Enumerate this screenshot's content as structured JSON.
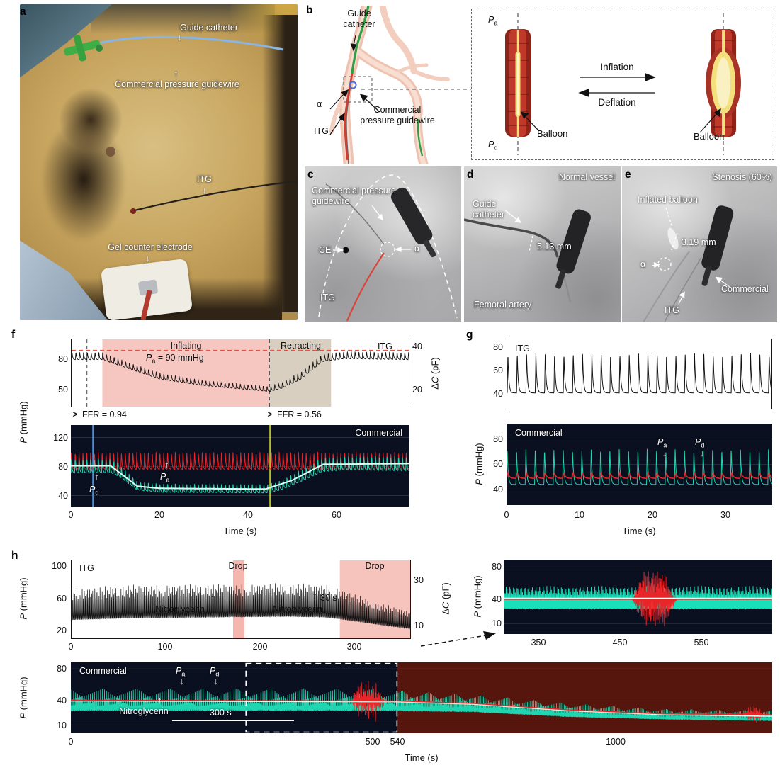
{
  "sym": {
    "P": "P",
    "a": "a",
    "d": "d",
    "alpha": "α",
    "delta": "Δ",
    "C": "C"
  },
  "labels": {
    "mmhg": " (mmHg)",
    "pf": " (pF)",
    "time": "Time (s)"
  },
  "icons": {
    "arrow_down": "↓",
    "arrow_up": "↑",
    "ffr_marker": ">"
  },
  "panels": {
    "a": {
      "label": "a",
      "guide_catheter": "Guide catheter",
      "commercial_guidewire": "Commercial pressure guidewire",
      "itg": "ITG",
      "gel_counter_electrode": "Gel counter electrode"
    },
    "b": {
      "label": "b",
      "guide_catheter": "Guide catheter",
      "commercial_guidewire": "Commercial pressure guidewire",
      "itg": "ITG",
      "inflation": "Inflation",
      "deflation": "Deflation",
      "balloon_left": "Balloon",
      "balloon_right": "Balloon"
    },
    "c": {
      "label": "c",
      "commercial_guidewire": "Commercial pressure guidewire",
      "ce": "CE",
      "itg": "ITG"
    },
    "d": {
      "label": "d",
      "title": "Normal vessel",
      "guide_catheter": "Guide catheter",
      "measurement": "5.13 mm",
      "femoral_artery": "Femoral artery"
    },
    "e": {
      "label": "e",
      "title": "Stenosis (60%)",
      "inflated_balloon": "Inflated balloon",
      "measurement": "3.19 mm",
      "commercial": "Commercial",
      "itg": "ITG"
    },
    "f": {
      "label": "f",
      "pa_value": " = 90 mmHg",
      "ffr1": "FFR = 0.94",
      "ffr2": "FFR = 0.56"
    },
    "g": {
      "label": "g"
    },
    "h": {
      "label": "h",
      "nitroglycerin1": "Nitroglycerin",
      "nitroglycerin2": "Nitroglycerin",
      "nitroglycerin3": "Nitroglycerin",
      "scale30": "30 s",
      "scale300": "300 s"
    }
  },
  "chart_data": [
    {
      "id": "f-itg",
      "type": "line",
      "title": "ITG",
      "n": 1700,
      "xlabel": "Time (s)",
      "ylabel": "P (mmHg)",
      "ylabel_right": "ΔC (pF)",
      "xlim": [
        0,
        77
      ],
      "ylim": [
        32,
        101
      ],
      "yticks": [
        80,
        50
      ],
      "yticks_right": [
        40,
        20
      ],
      "regions": [
        {
          "x0": 7,
          "x1": 45,
          "color": "#f6c6c0",
          "name": "Inflating"
        },
        {
          "x0": 45,
          "x1": 59,
          "color": "#d8cfc0",
          "name": "Retracting"
        }
      ],
      "hlines": [
        {
          "y": 90,
          "color": "#e0554a",
          "dash": true,
          "label": "Pa = 90 mmHg"
        }
      ],
      "vlines": [
        {
          "x": 3.5,
          "color": "#444",
          "dash": true
        },
        {
          "x": 45,
          "color": "#444",
          "dash": true
        }
      ],
      "series": [
        {
          "name": "ITG",
          "style": "pulse",
          "color": "#111111",
          "width": 0.9,
          "freq": 1.15,
          "points": [
            [
              0,
              84,
              7
            ],
            [
              7,
              84,
              7
            ],
            [
              12,
              76,
              6
            ],
            [
              20,
              64,
              6
            ],
            [
              30,
              57,
              5
            ],
            [
              40,
              53,
              5
            ],
            [
              45,
              51,
              5
            ],
            [
              48,
              55,
              6
            ],
            [
              52,
              64,
              7
            ],
            [
              57,
              82,
              7
            ],
            [
              62,
              85,
              7
            ],
            [
              77,
              84,
              7
            ]
          ]
        }
      ],
      "ffr_annotations": [
        "FFR = 0.94",
        "FFR = 0.56"
      ]
    },
    {
      "id": "f-commercial",
      "type": "line",
      "title": "Commercial",
      "n": 1900,
      "xlabel": "Time (s)",
      "ylabel": "P (mmHg)",
      "bg": "#0b1020",
      "grid": [
        40,
        80,
        120
      ],
      "xlim": [
        0,
        76.5
      ],
      "ylim": [
        24,
        137
      ],
      "yticks": [
        120,
        80,
        40
      ],
      "xticks": [
        0,
        20,
        40,
        60
      ],
      "vlines": [
        {
          "x": 5,
          "color": "#4b8fd9",
          "width": 2
        },
        {
          "x": 45,
          "color": "#b8c21c",
          "width": 2
        }
      ],
      "series": [
        {
          "name": "Pa",
          "style": "pulse",
          "color": "#e8262a",
          "width": 1,
          "freq": 1.15,
          "points": [
            [
              0,
              87,
              22
            ],
            [
              76.5,
              87,
              22
            ]
          ]
        },
        {
          "name": "Pd",
          "style": "pulse",
          "color": "#1fd6b1",
          "width": 1,
          "freq": 1.15,
          "points": [
            [
              0,
              80,
              18
            ],
            [
              9,
              80,
              18
            ],
            [
              11,
              74,
              16
            ],
            [
              15,
              53,
              11
            ],
            [
              20,
              50,
              11
            ],
            [
              44,
              49,
              11
            ],
            [
              47,
              53,
              12
            ],
            [
              50,
              61,
              14
            ],
            [
              57,
              82,
              18
            ],
            [
              62,
              84,
              18
            ],
            [
              76.5,
              83,
              18
            ]
          ]
        },
        {
          "name": "Pd mean",
          "style": "mean",
          "color": "#ddfff2",
          "width": 2,
          "points": [
            [
              0,
              81,
              0
            ],
            [
              9,
              81,
              0
            ],
            [
              15,
              53,
              0
            ],
            [
              20,
              50,
              0
            ],
            [
              44,
              49,
              0
            ],
            [
              50,
              61,
              0
            ],
            [
              57,
              83,
              0
            ],
            [
              76.5,
              84,
              0
            ]
          ]
        }
      ]
    },
    {
      "id": "g-itg",
      "type": "line",
      "title": "ITG",
      "n": 1400,
      "ylabel": "P (mmHg)",
      "xlim": [
        0,
        36.5
      ],
      "ylim": [
        27,
        87
      ],
      "yticks": [
        80,
        60,
        40
      ],
      "series": [
        {
          "name": "ITG",
          "style": "spike",
          "color": "#111111",
          "width": 1,
          "freq": 0.78,
          "points": [
            [
              0,
              45,
              34
            ],
            [
              36.5,
              45,
              34
            ]
          ]
        }
      ]
    },
    {
      "id": "g-commercial",
      "type": "line",
      "title": "Commercial",
      "n": 1500,
      "xlabel": "Time (s)",
      "ylabel": "P (mmHg)",
      "bg": "#0b1020",
      "grid": [
        40,
        60,
        80
      ],
      "xlim": [
        0,
        36.5
      ],
      "ylim": [
        28,
        92
      ],
      "yticks": [
        80,
        60,
        40
      ],
      "xticks": [
        0,
        10,
        20,
        30
      ],
      "series": [
        {
          "name": "Pd",
          "style": "spike",
          "color": "#1fd6b1",
          "width": 1,
          "freq": 0.78,
          "points": [
            [
              0,
              47,
              28
            ],
            [
              36.5,
              47,
              28
            ]
          ]
        },
        {
          "name": "Pa",
          "style": "pulse",
          "color": "#e8262a",
          "width": 1.5,
          "freq": 0.78,
          "points": [
            [
              0,
              51,
              4
            ],
            [
              36.5,
              51,
              4
            ]
          ]
        }
      ]
    },
    {
      "id": "h-itg",
      "type": "line",
      "title": "ITG",
      "n": 2400,
      "xlabel": "Time (s)",
      "ylabel": "P (mmHg)",
      "ylabel_right": "ΔC (pF)",
      "xlim": [
        0,
        360
      ],
      "ylim": [
        10,
        108
      ],
      "yticks": [
        100,
        60,
        20
      ],
      "yticks_right": [
        30,
        10
      ],
      "xticks": [
        0,
        100,
        200,
        300
      ],
      "regions": [
        {
          "x0": 171,
          "x1": 183,
          "color": "#f5b6b0",
          "name": "Drop"
        },
        {
          "x0": 284,
          "x1": 360,
          "color": "#f6c3bd",
          "name": "Drop"
        }
      ],
      "series": [
        {
          "name": "ITG",
          "style": "pulse",
          "color": "#111111",
          "width": 0.7,
          "freq": 0.9,
          "points": [
            [
              0,
              52,
              36
            ],
            [
              60,
              55,
              38
            ],
            [
              140,
              56,
              38
            ],
            [
              230,
              57,
              38
            ],
            [
              270,
              56,
              38
            ],
            [
              290,
              51,
              34
            ],
            [
              320,
              42,
              26
            ],
            [
              360,
              33,
              20
            ]
          ]
        }
      ],
      "annotations": [
        "Nitroglycerin",
        "Nitroglycerin",
        "30 s"
      ]
    },
    {
      "id": "h-inset",
      "type": "line",
      "title": "",
      "n": 2000,
      "ylabel": "P (mmHg)",
      "bg": "#0b1020",
      "grid": [
        10,
        40,
        80
      ],
      "xlim": [
        308,
        637
      ],
      "ylim": [
        -3,
        89
      ],
      "yticks": [
        80,
        40,
        10
      ],
      "xticks": [
        350,
        450,
        550
      ],
      "series": [
        {
          "name": "Pd",
          "style": "pulse",
          "color": "#19e0b8",
          "width": 1,
          "freq": 0.9,
          "points": [
            [
              308,
              41,
              26
            ],
            [
              637,
              41,
              26
            ]
          ]
        },
        {
          "name": "Pa burst",
          "style": "burst",
          "color": "#e8262a",
          "width": 1,
          "freq": 1.7,
          "points": [
            [
              308,
              40,
              0
            ],
            [
              465,
              40,
              0
            ],
            [
              472,
              40,
              18
            ],
            [
              480,
              42,
              34
            ],
            [
              505,
              40,
              34
            ],
            [
              512,
              38,
              16
            ],
            [
              520,
              40,
              0
            ],
            [
              637,
              40,
              0
            ]
          ]
        },
        {
          "name": "Pd mean",
          "style": "mean",
          "color": "#e7fff4",
          "width": 2,
          "points": [
            [
              308,
              41,
              0
            ],
            [
              637,
              41,
              0
            ]
          ]
        },
        {
          "name": "Pa",
          "style": "mean",
          "color": "#e8262a",
          "width": 1.4,
          "points": [
            [
              308,
              40,
              0
            ],
            [
              637,
              40,
              0
            ]
          ]
        }
      ]
    },
    {
      "id": "h-commercial",
      "type": "line",
      "title": "Commercial",
      "n": 3200,
      "xlabel": "Time (s)",
      "ylabel": "P (mmHg)",
      "grid": [
        10,
        40,
        80
      ],
      "xlim": [
        0,
        1330
      ],
      "ylim": [
        0,
        88
      ],
      "yticks": [
        80,
        40,
        10
      ],
      "xticks": [
        0,
        500,
        540,
        1000
      ],
      "segments": [
        {
          "t0": 0,
          "t1": 540,
          "f0": 0,
          "f1": 0.465
        },
        {
          "t0": 540,
          "t1": 1330,
          "f0": 0.465,
          "f1": 1
        }
      ],
      "bands": [
        {
          "x0": 0,
          "x1": 540,
          "color": "#0b1020"
        },
        {
          "x0": 540,
          "x1": 1330,
          "color": "#56150d"
        }
      ],
      "boxes": [
        {
          "x0": 290,
          "x1": 540,
          "color": "#ffffff"
        }
      ],
      "series": [
        {
          "name": "Pd",
          "style": "pulse",
          "color": "#1fd6b1",
          "width": 0.8,
          "freq": 0.9,
          "points": [
            [
              0,
              40,
              26
            ],
            [
              460,
              40,
              26
            ],
            [
              540,
              39,
              24
            ],
            [
              700,
              36,
              20
            ],
            [
              900,
              28,
              16
            ],
            [
              1100,
              23,
              12
            ],
            [
              1330,
              21,
              12
            ]
          ]
        },
        {
          "name": "Pa burst",
          "style": "burst",
          "color": "#e8262a",
          "width": 0.8,
          "freq": 1.7,
          "points": [
            [
              0,
              40,
              0
            ],
            [
              465,
              40,
              0
            ],
            [
              473,
              41,
              24
            ],
            [
              505,
              40,
              26
            ],
            [
              515,
              39,
              10
            ],
            [
              523,
              40,
              0
            ],
            [
              540,
              40,
              0
            ],
            [
              700,
              37,
              0
            ],
            [
              900,
              29,
              0
            ],
            [
              1100,
              24,
              0
            ],
            [
              1270,
              24,
              0
            ],
            [
              1282,
              24,
              10
            ],
            [
              1300,
              23,
              12
            ],
            [
              1312,
              23,
              0
            ],
            [
              1330,
              23,
              0
            ]
          ]
        },
        {
          "name": "Pd mean",
          "style": "mean",
          "color": "#d9f7e8",
          "width": 1.6,
          "points": [
            [
              0,
              40,
              0
            ],
            [
              540,
              39,
              0
            ],
            [
              700,
              36,
              0
            ],
            [
              900,
              28,
              0
            ],
            [
              1100,
              23,
              0
            ],
            [
              1330,
              21,
              0
            ]
          ]
        },
        {
          "name": "Pa",
          "style": "mean",
          "color": "#e8262a",
          "width": 1.4,
          "points": [
            [
              0,
              41,
              0
            ],
            [
              540,
              40,
              0
            ],
            [
              700,
              37,
              0
            ],
            [
              900,
              29,
              0
            ],
            [
              1100,
              24,
              0
            ],
            [
              1330,
              23,
              0
            ]
          ]
        }
      ]
    }
  ]
}
